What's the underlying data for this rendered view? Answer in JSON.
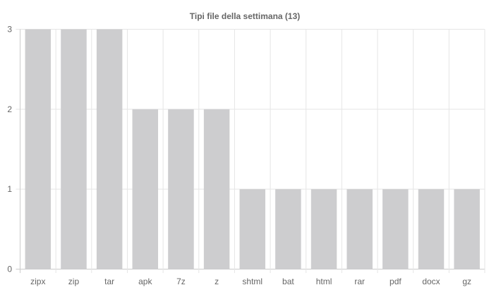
{
  "chart_data": {
    "type": "bar",
    "title": "Tipi file della settimana (13)",
    "categories": [
      "zipx",
      "zip",
      "tar",
      "apk",
      "7z",
      "z",
      "shtml",
      "bat",
      "html",
      "rar",
      "pdf",
      "docx",
      "gz"
    ],
    "series": [
      {
        "values": [
          3,
          3,
          3,
          2,
          2,
          2,
          1,
          1,
          1,
          1,
          1,
          1,
          1
        ]
      }
    ],
    "xlabel": "",
    "ylabel": "",
    "ylim": [
      0,
      3
    ],
    "yticks": [
      0,
      1,
      2,
      3
    ],
    "grid": true,
    "legend": "none",
    "bar_color": "#cdcdcf",
    "grid_color": "#e5e5e5",
    "text_color": "#666666"
  }
}
